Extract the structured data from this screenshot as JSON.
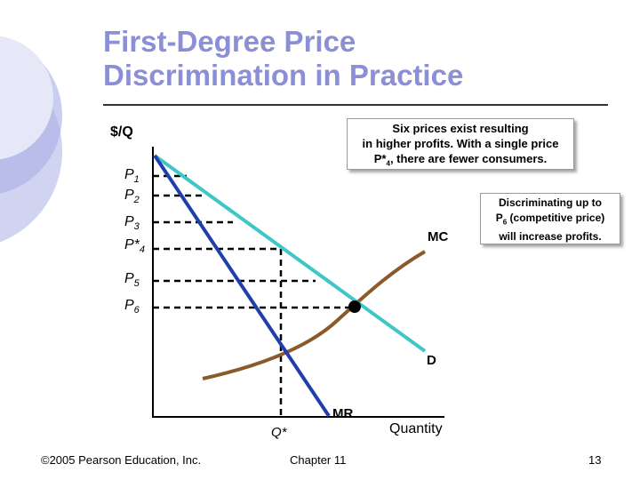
{
  "slide": {
    "title_line1": "First-Degree Price",
    "title_line2": "Discrimination in Practice",
    "footer_copyright": "©2005 Pearson Education, Inc.",
    "footer_chapter": "Chapter 11",
    "footer_page": "13"
  },
  "diagram": {
    "y_axis_label": "$/Q",
    "x_axis_label": "Quantity",
    "price_labels": [
      {
        "base": "P",
        "sub": "1"
      },
      {
        "base": "P",
        "sub": "2"
      },
      {
        "base": "P",
        "sub": "3"
      },
      {
        "base": "P*",
        "sub": "4"
      },
      {
        "base": "P",
        "sub": "5"
      },
      {
        "base": "P",
        "sub": "6"
      }
    ],
    "qstar_label": "Q*",
    "curves": {
      "mc": "MC",
      "d": "D",
      "mr": "MR"
    },
    "colors": {
      "demand": "#3fc6c6",
      "marginal_revenue": "#1f3fae",
      "marginal_cost": "#8b5a2b",
      "title": "#8a8fd6"
    }
  },
  "callouts": {
    "six_prices_line1": "Six prices exist resulting",
    "six_prices_line2": "in higher profits.  With a single price",
    "six_prices_line3_pre": "P*",
    "six_prices_line3_sub": "4",
    "six_prices_line3_post": ", there are fewer consumers.",
    "discrim_line1": "Discriminating up to",
    "discrim_line2_pre": "P",
    "discrim_line2_sub": "6",
    "discrim_line2_post": " (competitive price)",
    "discrim_line3": "will increase profits."
  }
}
